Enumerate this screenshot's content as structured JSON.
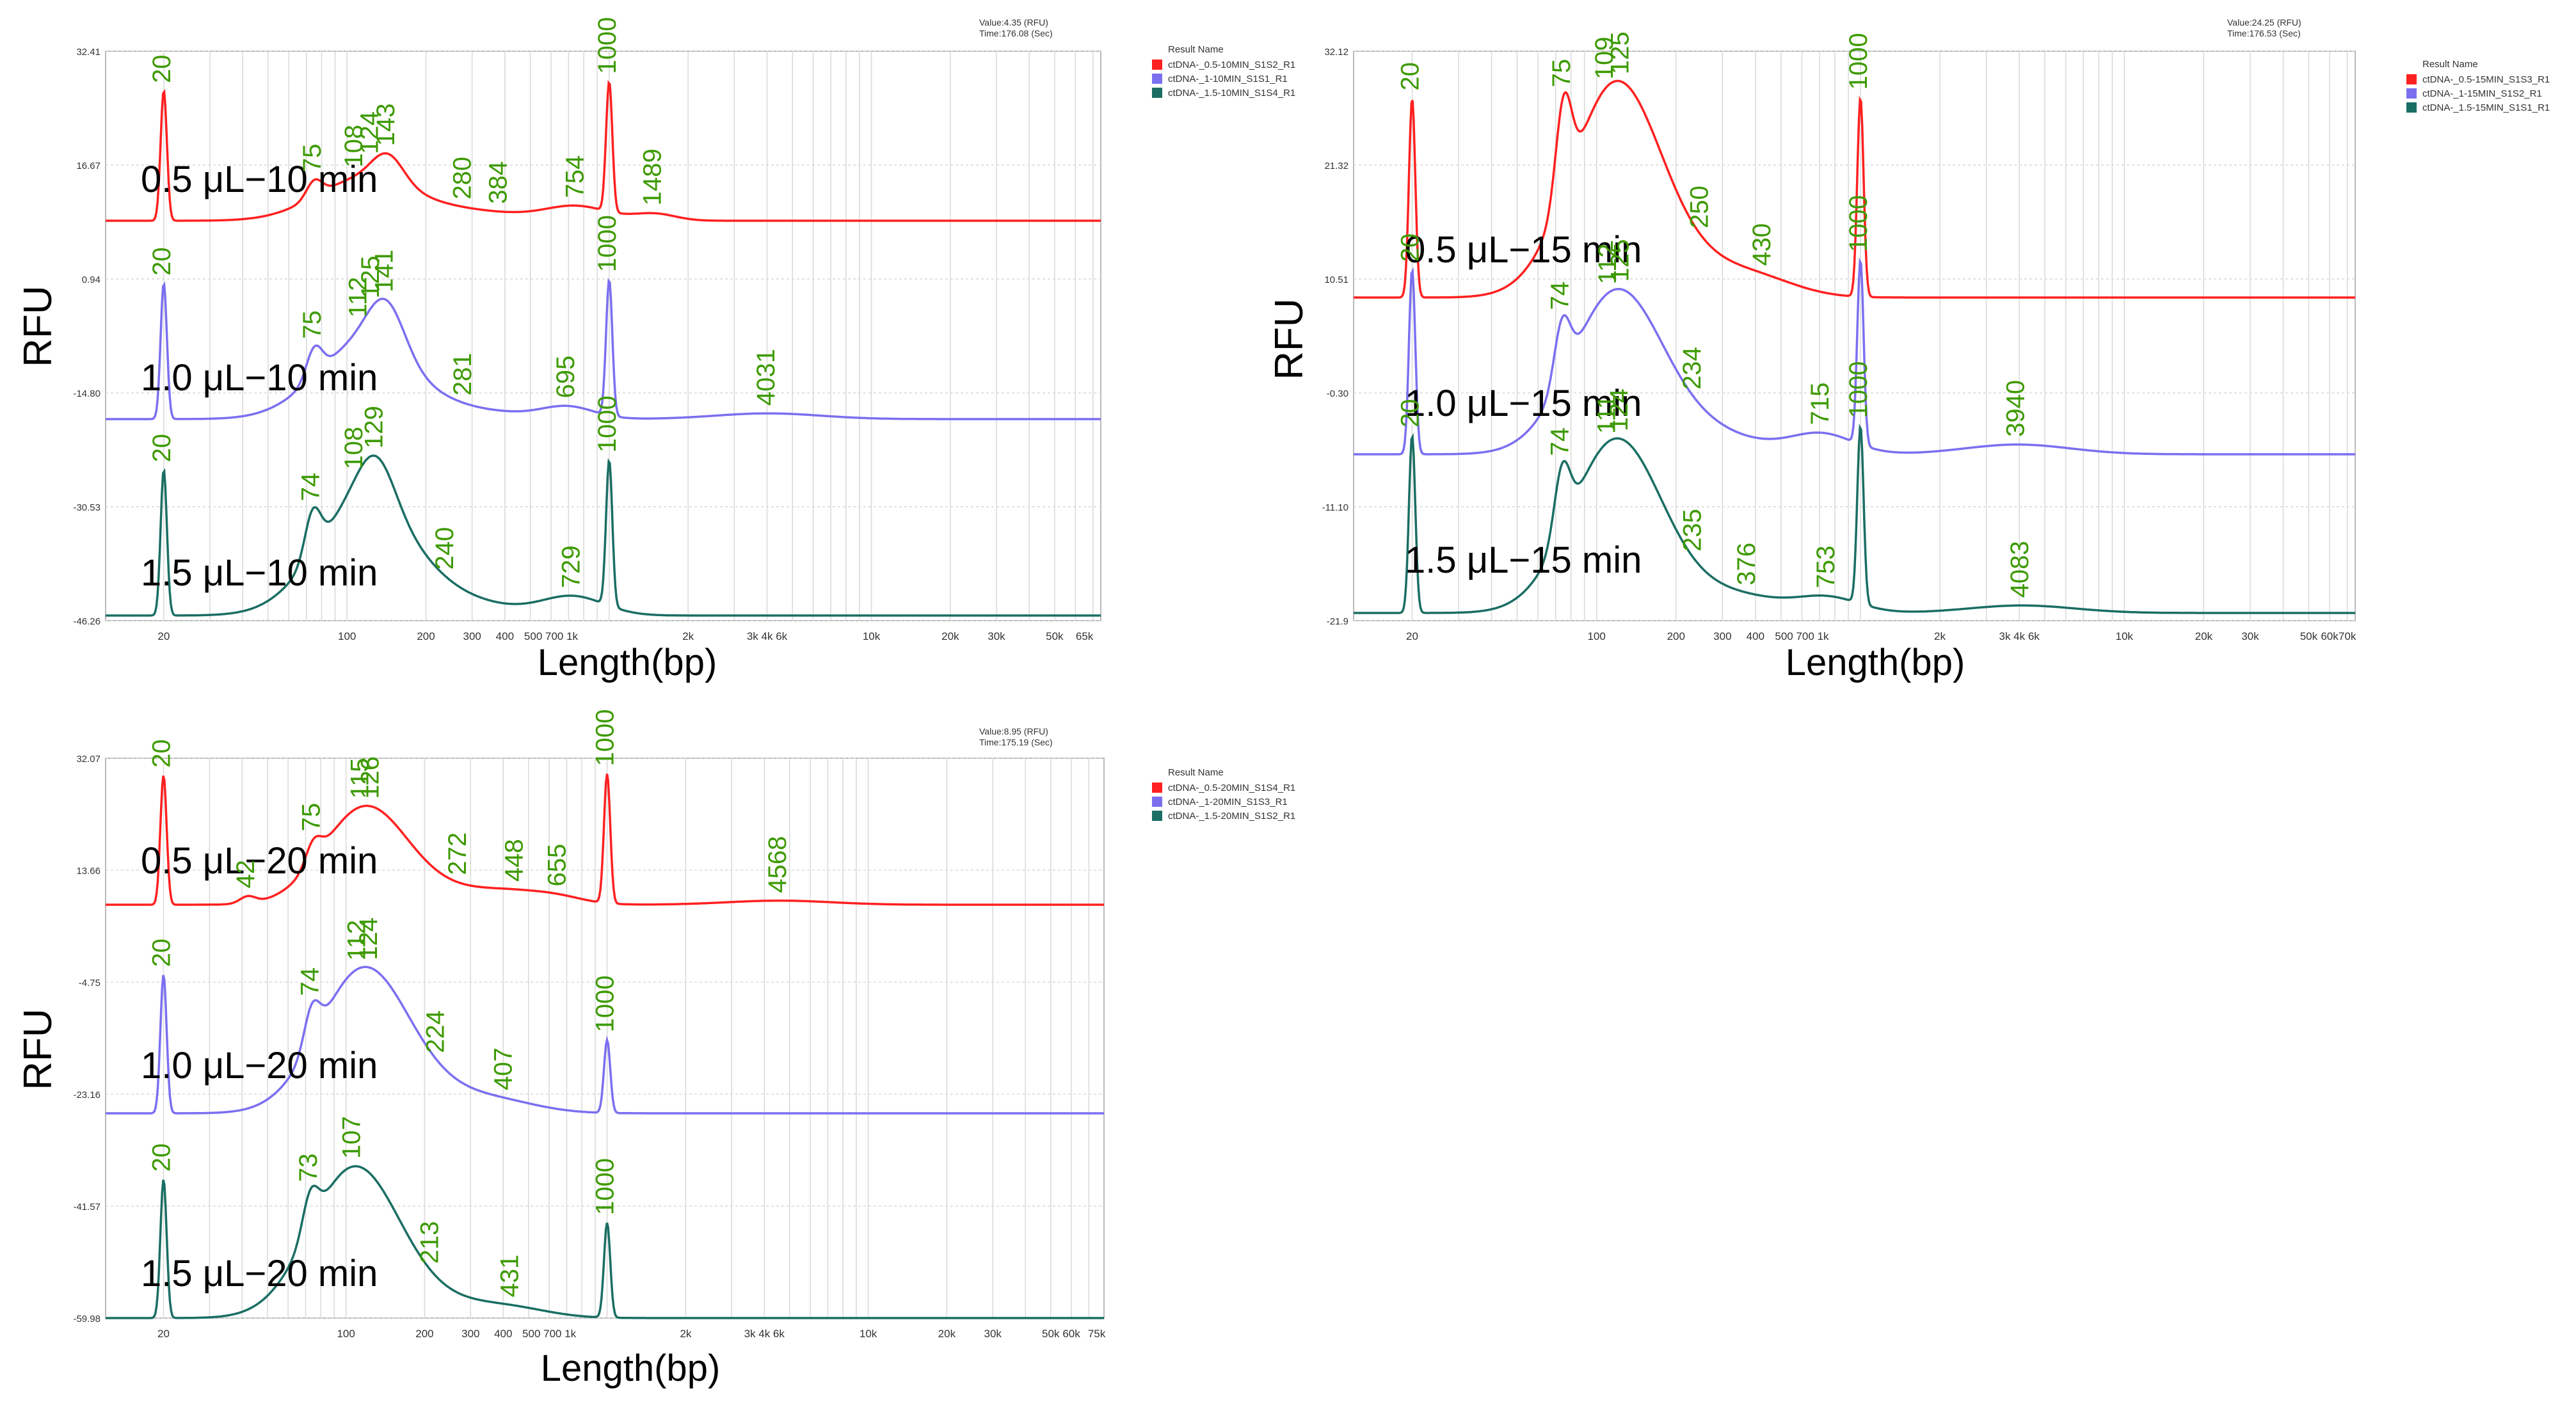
{
  "colors": {
    "red": "#ff2020",
    "blue": "#7b6ff0",
    "teal": "#1a6e63",
    "peak_label": "#3d9a00",
    "um_label": "#ff3030",
    "grid": "#d9d9d9",
    "axis": "#555555"
  },
  "chart_data": [
    {
      "type": "line",
      "id": "panel-10min",
      "ylabel": "RFU",
      "xlabel": "Length(bp)",
      "readout": [
        "Value:4.35 (RFU)",
        "Time:176.08 (Sec)"
      ],
      "y_ticks": [
        "32.41",
        "16.67",
        "0.94",
        "-14.80",
        "-30.53",
        "-46.26"
      ],
      "x_tick_labels": [
        "20",
        "100",
        "200",
        "300",
        "400",
        "500 700 1k",
        "2k",
        "3k 4k 6k",
        "10k",
        "20k",
        "30k",
        "50k",
        "65k"
      ],
      "x_tick_values": [
        20,
        100,
        200,
        300,
        400,
        600,
        2000,
        4000,
        10000,
        20000,
        30000,
        50000,
        65000
      ],
      "x_range": [
        12,
        75000
      ],
      "legend_title": "Result Name",
      "series": [
        {
          "name": "ctDNA-_0.5-10MIN_S1S2_R1",
          "label": "0.5 μL−10 min",
          "color": "red",
          "baseline": 0.3,
          "peaks": [
            [
              20,
              0.95,
              0.012
            ],
            [
              1000,
              0.95,
              0.012
            ],
            [
              75,
              0.12,
              0.03
            ],
            [
              115,
              0.3,
              0.18
            ],
            [
              143,
              0.2,
              0.06
            ],
            [
              280,
              0.07,
              0.22
            ],
            [
              754,
              0.1,
              0.12
            ],
            [
              1489,
              0.05,
              0.08
            ]
          ],
          "labels": [
            "20",
            "75",
            "108",
            "124",
            "143",
            "280",
            "384",
            "754",
            "1000",
            "1489"
          ]
        },
        {
          "name": "ctDNA-_1-10MIN_S1S1_R1",
          "label": "1.0 μL−10 min",
          "color": "blue",
          "baseline": 0.3,
          "peaks": [
            [
              20,
              0.95,
              0.012
            ],
            [
              1000,
              0.95,
              0.012
            ],
            [
              75,
              0.2,
              0.03
            ],
            [
              115,
              0.52,
              0.18
            ],
            [
              141,
              0.35,
              0.07
            ],
            [
              281,
              0.06,
              0.22
            ],
            [
              695,
              0.08,
              0.1
            ],
            [
              4031,
              0.04,
              0.2
            ]
          ],
          "labels": [
            "20",
            "75",
            "112",
            "125",
            "141",
            "281",
            "695",
            "1000",
            "4031"
          ]
        },
        {
          "name": "ctDNA-_1.5-10MIN_S1S4_R1",
          "label": "1.5 μL−10 min",
          "color": "teal",
          "baseline": 0.3,
          "peaks": [
            [
              20,
              0.95,
              0.012
            ],
            [
              1000,
              0.95,
              0.012
            ],
            [
              74,
              0.28,
              0.03
            ],
            [
              115,
              0.72,
              0.18
            ],
            [
              129,
              0.3,
              0.07
            ],
            [
              240,
              0.1,
              0.22
            ],
            [
              729,
              0.12,
              0.12
            ]
          ],
          "labels": [
            "20",
            "74",
            "108",
            "129",
            "240",
            "729",
            "1000"
          ]
        }
      ]
    },
    {
      "type": "line",
      "id": "panel-15min",
      "ylabel": "RFU",
      "xlabel": "Length(bp)",
      "readout": [
        "Value:24.25 (RFU)",
        "Time:176.53 (Sec)"
      ],
      "y_ticks": [
        "32.12",
        "21.32",
        "10.51",
        "-0.30",
        "-11.10",
        "-21.9"
      ],
      "x_tick_labels": [
        "20",
        "100",
        "200",
        "300",
        "400",
        "500 700 1k",
        "2k",
        "3k 4k 6k",
        "10k",
        "20k",
        "30k",
        "50k",
        "60k",
        "70k"
      ],
      "x_tick_values": [
        20,
        100,
        200,
        300,
        400,
        600,
        2000,
        4000,
        10000,
        20000,
        30000,
        50000,
        60000,
        70000
      ],
      "x_range": [
        12,
        75000
      ],
      "legend_title": "Result Name",
      "series": [
        {
          "name": "ctDNA-_0.5-15MIN_S1S3_R1",
          "label": "0.5 μL−15 min",
          "color": "red",
          "baseline": 0.3,
          "peaks": [
            [
              20,
              0.95,
              0.012
            ],
            [
              1000,
              0.95,
              0.012
            ],
            [
              75,
              0.45,
              0.03
            ],
            [
              118,
              1.0,
              0.17
            ],
            [
              250,
              0.12,
              0.2
            ],
            [
              430,
              0.05,
              0.15
            ]
          ],
          "labels": [
            "20",
            "75",
            "109",
            "125",
            "250",
            "430",
            "1000"
          ]
        },
        {
          "name": "ctDNA-_1-15MIN_S1S2_R1",
          "label": "1.0 μL−15 min",
          "color": "blue",
          "baseline": 0.3,
          "peaks": [
            [
              20,
              0.95,
              0.012
            ],
            [
              1000,
              0.95,
              0.012
            ],
            [
              74,
              0.3,
              0.03
            ],
            [
              118,
              0.8,
              0.17
            ],
            [
              234,
              0.12,
              0.22
            ],
            [
              715,
              0.1,
              0.12
            ],
            [
              3940,
              0.05,
              0.2
            ]
          ],
          "labels": [
            "20",
            "74",
            "112",
            "125",
            "234",
            "715",
            "1000",
            "3940"
          ]
        },
        {
          "name": "ctDNA-_1.5-15MIN_S1S1_R1",
          "label": "1.5 μL−15 min",
          "color": "teal",
          "baseline": 0.3,
          "peaks": [
            [
              20,
              0.95,
              0.012
            ],
            [
              1000,
              0.95,
              0.012
            ],
            [
              74,
              0.35,
              0.03
            ],
            [
              118,
              0.9,
              0.17
            ],
            [
              235,
              0.08,
              0.22
            ],
            [
              376,
              0.04,
              0.15
            ],
            [
              753,
              0.08,
              0.12
            ],
            [
              4083,
              0.04,
              0.2
            ]
          ],
          "labels": [
            "20",
            "74",
            "111",
            "124",
            "235",
            "376",
            "753",
            "1000",
            "4083"
          ]
        }
      ]
    },
    {
      "type": "line",
      "id": "panel-20min",
      "ylabel": "RFU",
      "xlabel": "Length(bp)",
      "readout": [
        "Value:8.95 (RFU)",
        "Time:175.19 (Sec)"
      ],
      "y_ticks": [
        "32.07",
        "13.66",
        "-4.75",
        "-23.16",
        "-41.57",
        "-59.98"
      ],
      "x_tick_labels": [
        "20",
        "100",
        "200",
        "300",
        "400",
        "500 700 1k",
        "2k",
        "3k 4k 6k",
        "10k",
        "20k",
        "30k",
        "50k",
        "60k",
        "75k"
      ],
      "x_tick_values": [
        20,
        100,
        200,
        300,
        400,
        600,
        2000,
        4000,
        10000,
        20000,
        30000,
        50000,
        60000,
        75000
      ],
      "x_range": [
        12,
        80000
      ],
      "legend_title": "Result Name",
      "series": [
        {
          "name": "ctDNA-_0.5-20MIN_S1S4_R1",
          "label": "0.5 μL−20 min",
          "color": "red",
          "baseline": 0.3,
          "peaks": [
            [
              20,
              0.95,
              0.012
            ],
            [
              1000,
              0.95,
              0.012
            ],
            [
              42,
              0.05,
              0.03
            ],
            [
              75,
              0.15,
              0.03
            ],
            [
              118,
              0.7,
              0.16
            ],
            [
              272,
              0.1,
              0.22
            ],
            [
              448,
              0.04,
              0.12
            ],
            [
              655,
              0.04,
              0.1
            ],
            [
              4568,
              0.03,
              0.2
            ]
          ],
          "labels": [
            "20",
            "42",
            "75",
            "115",
            "126",
            "272",
            "448",
            "655",
            "1000",
            "4568"
          ]
        },
        {
          "name": "ctDNA-_1-20MIN_S1S3_R1",
          "label": "1.0 μL−20 min",
          "color": "blue",
          "baseline": 0.3,
          "peaks": [
            [
              20,
              0.95,
              0.012
            ],
            [
              1000,
              0.5,
              0.012
            ],
            [
              74,
              0.25,
              0.03
            ],
            [
              116,
              0.95,
              0.17
            ],
            [
              224,
              0.12,
              0.22
            ],
            [
              407,
              0.04,
              0.15
            ]
          ],
          "labels": [
            "20",
            "74",
            "112",
            "124",
            "224",
            "407",
            "1000"
          ]
        },
        {
          "name": "ctDNA-_1.5-20MIN_S1S2_R1",
          "label": "1.5 μL−20 min",
          "color": "teal",
          "baseline": 0.3,
          "peaks": [
            [
              20,
              0.95,
              0.012
            ],
            [
              1000,
              0.65,
              0.012
            ],
            [
              73,
              0.25,
              0.03
            ],
            [
              107,
              1.0,
              0.17
            ],
            [
              213,
              0.1,
              0.22
            ],
            [
              431,
              0.05,
              0.15
            ]
          ],
          "labels": [
            "20",
            "73",
            "107",
            "213",
            "431",
            "1000"
          ]
        }
      ]
    }
  ]
}
